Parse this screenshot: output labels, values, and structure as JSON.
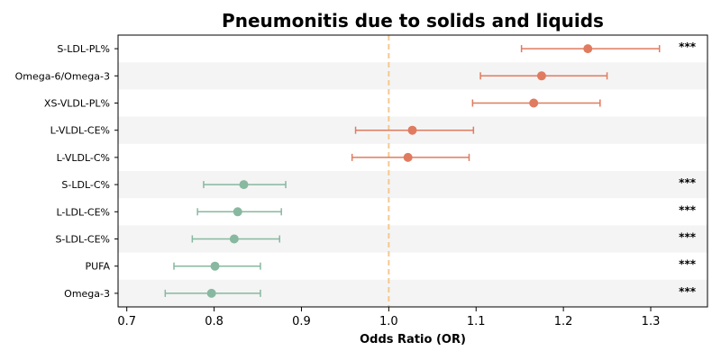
{
  "chart_data": {
    "type": "forest",
    "title": "Pneumonitis due to solids and liquids",
    "xlabel": "Odds Ratio (OR)",
    "xlim": [
      0.69,
      1.365
    ],
    "xticks": [
      "0.7",
      "0.8",
      "0.9",
      "1.0",
      "1.1",
      "1.2",
      "1.3"
    ],
    "reference_line": 1.0,
    "reference_color": "#f5c88f",
    "risk_color": "#e07b5f",
    "protective_color": "#88b8a0",
    "row_band_color": "#f4f4f4",
    "rows": [
      {
        "label": "S-LDL-PL%",
        "or": 1.228,
        "lo": 1.152,
        "hi": 1.31,
        "sig": "***"
      },
      {
        "label": "Omega-6/Omega-3",
        "or": 1.175,
        "lo": 1.105,
        "hi": 1.25,
        "sig": ""
      },
      {
        "label": "XS-VLDL-PL%",
        "or": 1.166,
        "lo": 1.096,
        "hi": 1.242,
        "sig": ""
      },
      {
        "label": "L-VLDL-CE%",
        "or": 1.027,
        "lo": 0.962,
        "hi": 1.097,
        "sig": ""
      },
      {
        "label": "L-VLDL-C%",
        "or": 1.022,
        "lo": 0.958,
        "hi": 1.092,
        "sig": ""
      },
      {
        "label": "S-LDL-C%",
        "or": 0.834,
        "lo": 0.788,
        "hi": 0.882,
        "sig": "***"
      },
      {
        "label": "L-LDL-CE%",
        "or": 0.827,
        "lo": 0.781,
        "hi": 0.877,
        "sig": "***"
      },
      {
        "label": "S-LDL-CE%",
        "or": 0.823,
        "lo": 0.775,
        "hi": 0.875,
        "sig": "***"
      },
      {
        "label": "PUFA",
        "or": 0.801,
        "lo": 0.754,
        "hi": 0.853,
        "sig": "***"
      },
      {
        "label": "Omega-3",
        "or": 0.797,
        "lo": 0.744,
        "hi": 0.853,
        "sig": "***"
      }
    ]
  }
}
